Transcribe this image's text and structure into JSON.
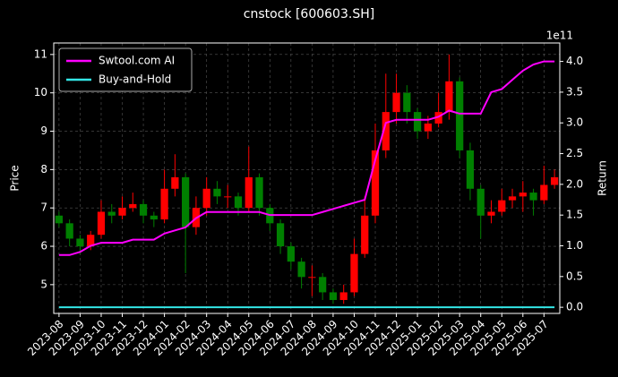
{
  "chart_data": {
    "type": "candlestick",
    "title": "cnstock [600603.SH]",
    "ylabel": "Price",
    "y2label": "Return",
    "y2_offset_label": "1e11",
    "categories": [
      "2023-08",
      null,
      "2023-09",
      null,
      "2023-10",
      null,
      "2023-11",
      null,
      "2023-12",
      null,
      "2024-01",
      null,
      "2024-02",
      null,
      "2024-03",
      null,
      "2024-04",
      null,
      "2024-05",
      null,
      "2024-06",
      null,
      "2024-07",
      null,
      "2024-08",
      null,
      "2024-09",
      null,
      "2024-10",
      null,
      "2024-11",
      null,
      "2024-12",
      null,
      "2025-01",
      null,
      "2025-02",
      null,
      "2025-03",
      null,
      "2025-04",
      null,
      "2025-05",
      null,
      "2025-06",
      null,
      "2025-07",
      null
    ],
    "open": [
      6.8,
      6.6,
      6.2,
      6.0,
      6.3,
      6.9,
      6.8,
      7.0,
      7.1,
      6.8,
      6.7,
      7.5,
      7.8,
      6.5,
      7.0,
      7.5,
      7.3,
      7.3,
      7.0,
      7.8,
      7.0,
      6.6,
      6.0,
      5.6,
      5.2,
      5.2,
      4.8,
      4.6,
      4.8,
      5.8,
      6.8,
      8.5,
      9.5,
      10.0,
      9.5,
      9.0,
      9.2,
      9.5,
      10.3,
      8.5,
      7.5,
      6.8,
      6.9,
      7.2,
      7.3,
      7.4,
      7.2,
      7.6
    ],
    "high": [
      6.9,
      6.7,
      6.3,
      6.4,
      7.2,
      7.1,
      7.3,
      7.4,
      7.2,
      6.9,
      8.0,
      8.4,
      7.9,
      7.3,
      7.8,
      7.7,
      7.6,
      7.4,
      8.6,
      7.9,
      7.1,
      6.7,
      6.1,
      5.7,
      5.5,
      5.3,
      4.9,
      5.0,
      6.2,
      7.3,
      9.2,
      10.5,
      10.5,
      10.2,
      9.6,
      9.4,
      10.0,
      11.0,
      10.4,
      8.7,
      7.6,
      7.2,
      7.5,
      7.5,
      7.7,
      7.5,
      8.1,
      8.0
    ],
    "low": [
      6.5,
      6.0,
      5.8,
      5.9,
      6.2,
      6.6,
      6.7,
      6.9,
      6.6,
      6.5,
      6.6,
      7.3,
      5.3,
      6.3,
      6.8,
      7.1,
      7.0,
      6.8,
      6.9,
      6.8,
      6.4,
      5.8,
      5.4,
      4.9,
      4.7,
      4.6,
      4.5,
      4.5,
      4.7,
      5.7,
      6.6,
      8.3,
      9.2,
      9.2,
      8.8,
      8.8,
      9.1,
      9.3,
      8.3,
      7.2,
      6.2,
      6.6,
      6.8,
      7.0,
      6.9,
      6.8,
      7.1,
      7.5
    ],
    "close": [
      6.6,
      6.2,
      6.0,
      6.3,
      6.9,
      6.8,
      7.0,
      7.1,
      6.8,
      6.7,
      7.5,
      7.8,
      6.5,
      7.0,
      7.5,
      7.3,
      7.3,
      7.0,
      7.8,
      7.0,
      6.6,
      6.0,
      5.6,
      5.2,
      5.2,
      4.8,
      4.6,
      4.8,
      5.8,
      6.8,
      8.5,
      9.5,
      10.0,
      9.5,
      9.0,
      9.2,
      9.5,
      10.3,
      8.5,
      7.5,
      6.8,
      6.9,
      7.2,
      7.3,
      7.4,
      7.2,
      7.6,
      7.8
    ],
    "up_color": "#ff0000",
    "down_color": "#008000",
    "series": [
      {
        "name": "Swtool.com AI",
        "color": "#ff00ff",
        "axis": "y2",
        "values": [
          0.85,
          0.85,
          0.9,
          1.0,
          1.05,
          1.05,
          1.05,
          1.1,
          1.1,
          1.1,
          1.2,
          1.25,
          1.3,
          1.45,
          1.55,
          1.55,
          1.55,
          1.55,
          1.55,
          1.55,
          1.5,
          1.5,
          1.5,
          1.5,
          1.5,
          1.55,
          1.6,
          1.65,
          1.7,
          1.75,
          2.4,
          3.0,
          3.05,
          3.05,
          3.05,
          3.05,
          3.1,
          3.2,
          3.15,
          3.15,
          3.15,
          3.5,
          3.55,
          3.7,
          3.85,
          3.95,
          4.0,
          4.0
        ]
      },
      {
        "name": "Buy-and-Hold",
        "color": "#33e6e6",
        "axis": "y2",
        "values": [
          0,
          0,
          0,
          0,
          0,
          0,
          0,
          0,
          0,
          0,
          0,
          0,
          0,
          0,
          0,
          0,
          0,
          0,
          0,
          0,
          0,
          0,
          0,
          0,
          0,
          0,
          0,
          0,
          0,
          0,
          0,
          0,
          0,
          0,
          0,
          0,
          0,
          0,
          0,
          0,
          0,
          0,
          0,
          0,
          0,
          0,
          0,
          0
        ]
      }
    ],
    "ylim": [
      4.25,
      11.3
    ],
    "yticks": [
      5,
      6,
      7,
      8,
      9,
      10,
      11
    ],
    "y2lim": [
      -0.1,
      4.3
    ],
    "y2ticks": [
      {
        "value": 0,
        "label": "0.0"
      },
      {
        "value": 0.5,
        "label": "0.5"
      },
      {
        "value": 1,
        "label": "1.0"
      },
      {
        "value": 1.5,
        "label": "1.5"
      },
      {
        "value": 2,
        "label": "2.0"
      },
      {
        "value": 2.5,
        "label": "2.5"
      },
      {
        "value": 3,
        "label": "3.0"
      },
      {
        "value": 3.5,
        "label": "3.5"
      },
      {
        "value": 4,
        "label": "4.0"
      }
    ],
    "grid": true,
    "legend": "upper left"
  }
}
